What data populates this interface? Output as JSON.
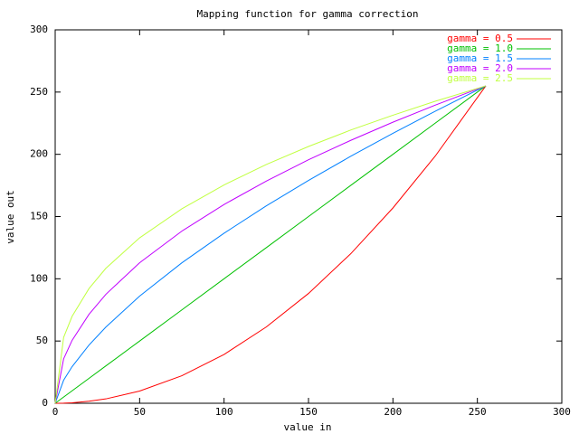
{
  "chart_data": {
    "type": "line",
    "title": "Mapping function for gamma correction",
    "x_label": "value in",
    "y_label": "value out",
    "x": [
      0,
      5,
      10,
      20,
      30,
      50,
      75,
      100,
      125,
      150,
      175,
      200,
      225,
      255
    ],
    "series": [
      {
        "name": "gamma = 0.5",
        "color": "#ff0000",
        "values": [
          0,
          0.1,
          0.4,
          1.6,
          3.5,
          9.8,
          22.1,
          39.2,
          61.3,
          88.2,
          120.1,
          156.9,
          198.5,
          255
        ]
      },
      {
        "name": "gamma = 1.0",
        "color": "#00c000",
        "values": [
          0,
          5,
          10,
          20,
          30,
          50,
          75,
          100,
          125,
          150,
          175,
          200,
          225,
          255
        ]
      },
      {
        "name": "gamma = 1.5",
        "color": "#0080ff",
        "values": [
          0,
          18.5,
          29.4,
          46.7,
          61.2,
          86.1,
          112.8,
          136.6,
          158.6,
          179.0,
          198.4,
          216.9,
          234.6,
          255
        ]
      },
      {
        "name": "gamma = 2.0",
        "color": "#c000ff",
        "values": [
          0,
          35.7,
          50.5,
          71.4,
          87.5,
          112.9,
          138.3,
          159.7,
          178.5,
          195.6,
          211.2,
          225.8,
          239.5,
          255
        ]
      },
      {
        "name": "gamma = 2.5",
        "color": "#c0ff40",
        "values": [
          0,
          52.9,
          69.8,
          92.1,
          108.4,
          132.9,
          156.2,
          175.4,
          191.8,
          206.3,
          219.5,
          231.4,
          242.6,
          255
        ]
      }
    ],
    "xlim": [
      0,
      300
    ],
    "xticks": [
      0,
      50,
      100,
      150,
      200,
      250,
      300
    ],
    "ylim": [
      0,
      300
    ],
    "yticks": [
      0,
      50,
      100,
      150,
      200,
      250,
      300
    ],
    "legend": "top-right",
    "grid": false
  }
}
